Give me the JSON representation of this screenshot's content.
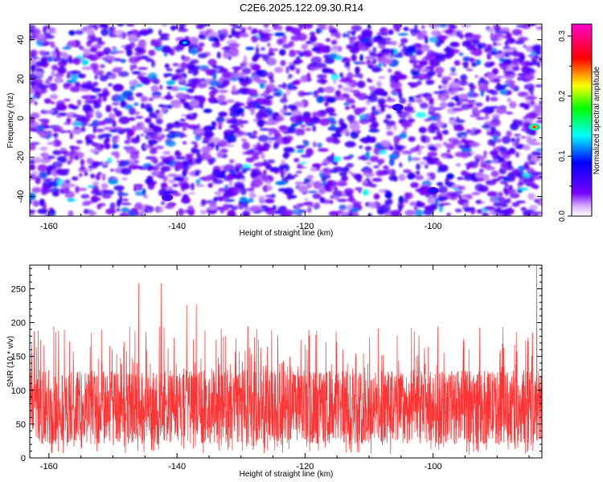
{
  "title": "C2E6.2025.122.09.30.R14",
  "chart_data": [
    {
      "type": "heatmap",
      "xlabel": "Height of straight line (km)",
      "ylabel": "Frequency (Hz)",
      "xlim": [
        -163,
        -83
      ],
      "ylim": [
        -50,
        48
      ],
      "xticks": [
        -160,
        -140,
        -120,
        -100
      ],
      "yticks": [
        -40,
        -20,
        0,
        20,
        40
      ],
      "colorbar": {
        "label": "Normalized spectral amplitude",
        "range": [
          0,
          0.32
        ],
        "ticks": [
          0.0,
          0.1,
          0.2,
          0.3
        ],
        "colors": [
          "#ffffff",
          "#7700ff",
          "#0000ff",
          "#00ffff",
          "#00ff00",
          "#ffff00",
          "#ff0000",
          "#ff00cc"
        ]
      },
      "background_level": 0.03,
      "peaks": [
        {
          "x": -84.2,
          "y": -4.5,
          "value": 0.3
        },
        {
          "x": -138.8,
          "y": 38.5,
          "value": 0.13
        },
        {
          "x": -105.5,
          "y": 5.5,
          "value": 0.1
        },
        {
          "x": -100.0,
          "y": -37.0,
          "value": 0.1
        },
        {
          "x": -141.5,
          "y": -40.5,
          "value": 0.08
        }
      ]
    },
    {
      "type": "line",
      "xlabel": "Height of straight line (km)",
      "ylabel": "SNR (10 * v/v)",
      "xlim": [
        -163,
        -83
      ],
      "ylim": [
        0,
        285
      ],
      "xticks": [
        -160,
        -140,
        -120,
        -100
      ],
      "yticks": [
        0,
        50,
        100,
        150,
        200,
        250
      ],
      "color": "#ff3333",
      "baseline": 75,
      "peaks": [
        {
          "x": -146.0,
          "y": 258
        },
        {
          "x": -142.5,
          "y": 258
        },
        {
          "x": -138.5,
          "y": 226
        },
        {
          "x": -137.0,
          "y": 227
        },
        {
          "x": -83.8,
          "y": 285
        },
        {
          "x": -158.5,
          "y": 188
        },
        {
          "x": -84.5,
          "y": 185
        }
      ]
    }
  ]
}
